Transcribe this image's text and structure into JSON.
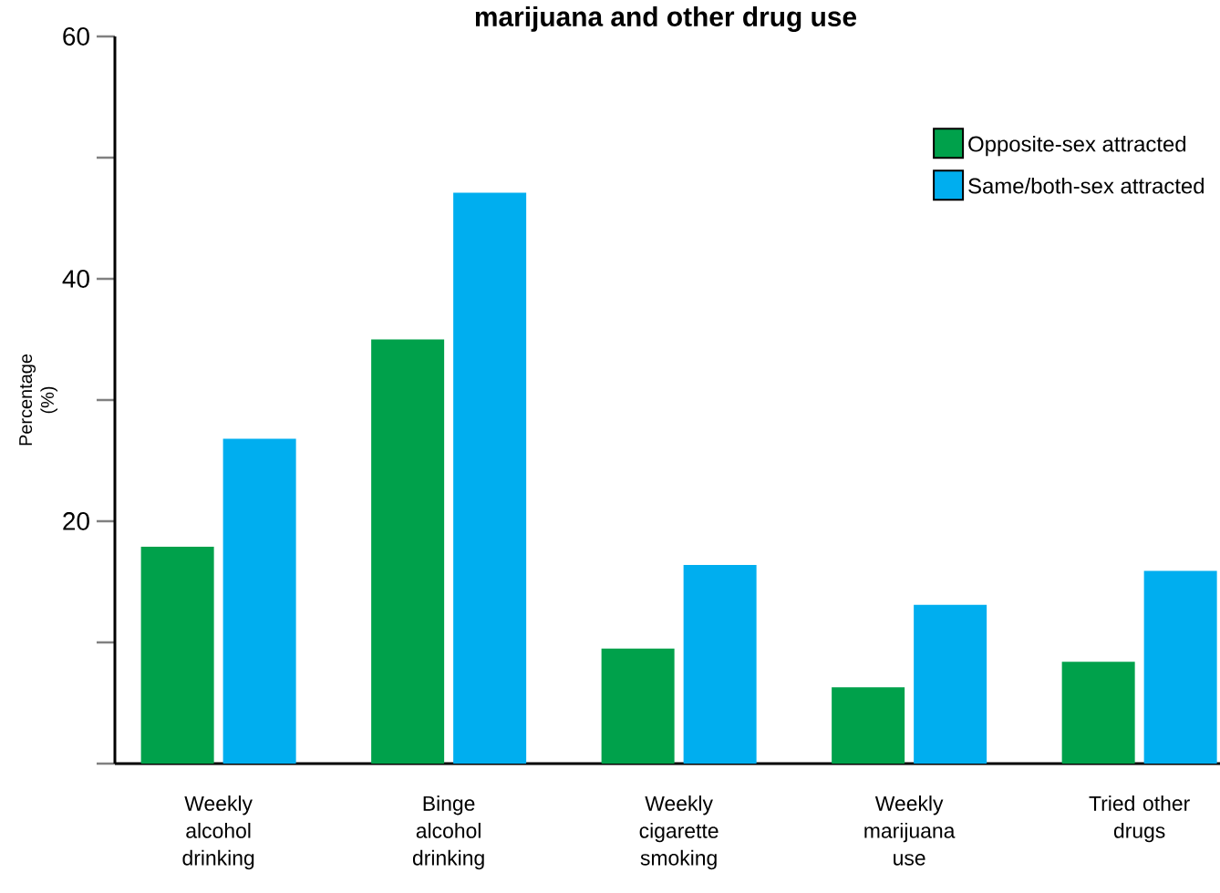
{
  "chart_data": {
    "type": "bar",
    "title": "marijuana and other drug use",
    "ylabel": "Percentage (%)",
    "categories": [
      "Weekly alcohol drinking",
      "Binge alcohol drinking",
      "Weekly cigarette smoking",
      "Weekly marijuana use",
      "Tried other drugs"
    ],
    "series": [
      {
        "name": "Opposite-sex attracted",
        "color": "#00a14b",
        "values": [
          17.9,
          35.0,
          9.5,
          6.3,
          8.4
        ]
      },
      {
        "name": "Same/both-sex attracted",
        "color": "#00aeef",
        "values": [
          26.8,
          47.1,
          16.4,
          13.1,
          15.9
        ]
      }
    ],
    "ylim": [
      0,
      60
    ],
    "yticks": [
      {
        "value": 0,
        "label": null
      },
      {
        "value": 10,
        "label": null
      },
      20,
      {
        "value": 30,
        "label": null
      },
      40,
      {
        "value": 50,
        "label": null
      },
      60
    ],
    "legend": "top right"
  }
}
